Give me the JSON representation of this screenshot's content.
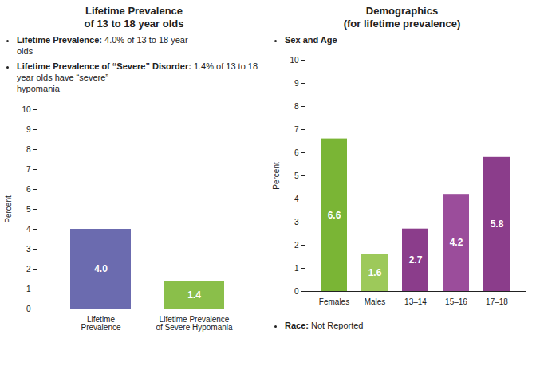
{
  "chart_data": [
    {
      "type": "bar",
      "title": "Lifetime Prevalence\nof 13 to 18 year olds",
      "annotations": [
        {
          "label": "Lifetime Prevalence:",
          "text": "4.0% of 13 to 18 year\nolds"
        },
        {
          "label": "Lifetime Prevalence of “Severe” Disorder:",
          "text": "1.4% of 13 to 18 year olds have “severe”\nhypomania"
        }
      ],
      "categories": [
        "Lifetime\nPrevalence",
        "Lifetime Prevalence\nof Severe Hypomania"
      ],
      "values": [
        4.0,
        1.4
      ],
      "value_labels": [
        "4.0",
        "1.4"
      ],
      "colors": [
        "#6b6baf",
        "#8abf4a"
      ],
      "ylabel": "Percent",
      "ylim": [
        0,
        10
      ],
      "yticks": [
        0,
        1,
        2,
        3,
        4,
        5,
        6,
        7,
        8,
        9,
        10
      ],
      "data_labels": true
    },
    {
      "type": "bar",
      "title": "Demographics\n(for lifetime prevalence)",
      "annotations": [
        {
          "label": "Sex and Age"
        },
        {
          "label": "Race:",
          "text": "Not Reported"
        }
      ],
      "categories": [
        "Females",
        "Males",
        "13–14",
        "15–16",
        "17–18"
      ],
      "values": [
        6.6,
        1.6,
        2.7,
        4.2,
        5.8
      ],
      "value_labels": [
        "6.6",
        "1.6",
        "2.7",
        "4.2",
        "5.8"
      ],
      "colors": [
        "#7ab535",
        "#9dc95a",
        "#8b3d8b",
        "#9b4d9b",
        "#8b3d8b"
      ],
      "ylabel": "Percent",
      "ylim": [
        0,
        10
      ],
      "yticks": [
        0,
        1,
        2,
        3,
        4,
        5,
        6,
        7,
        8,
        9,
        10
      ],
      "data_labels": true
    }
  ]
}
